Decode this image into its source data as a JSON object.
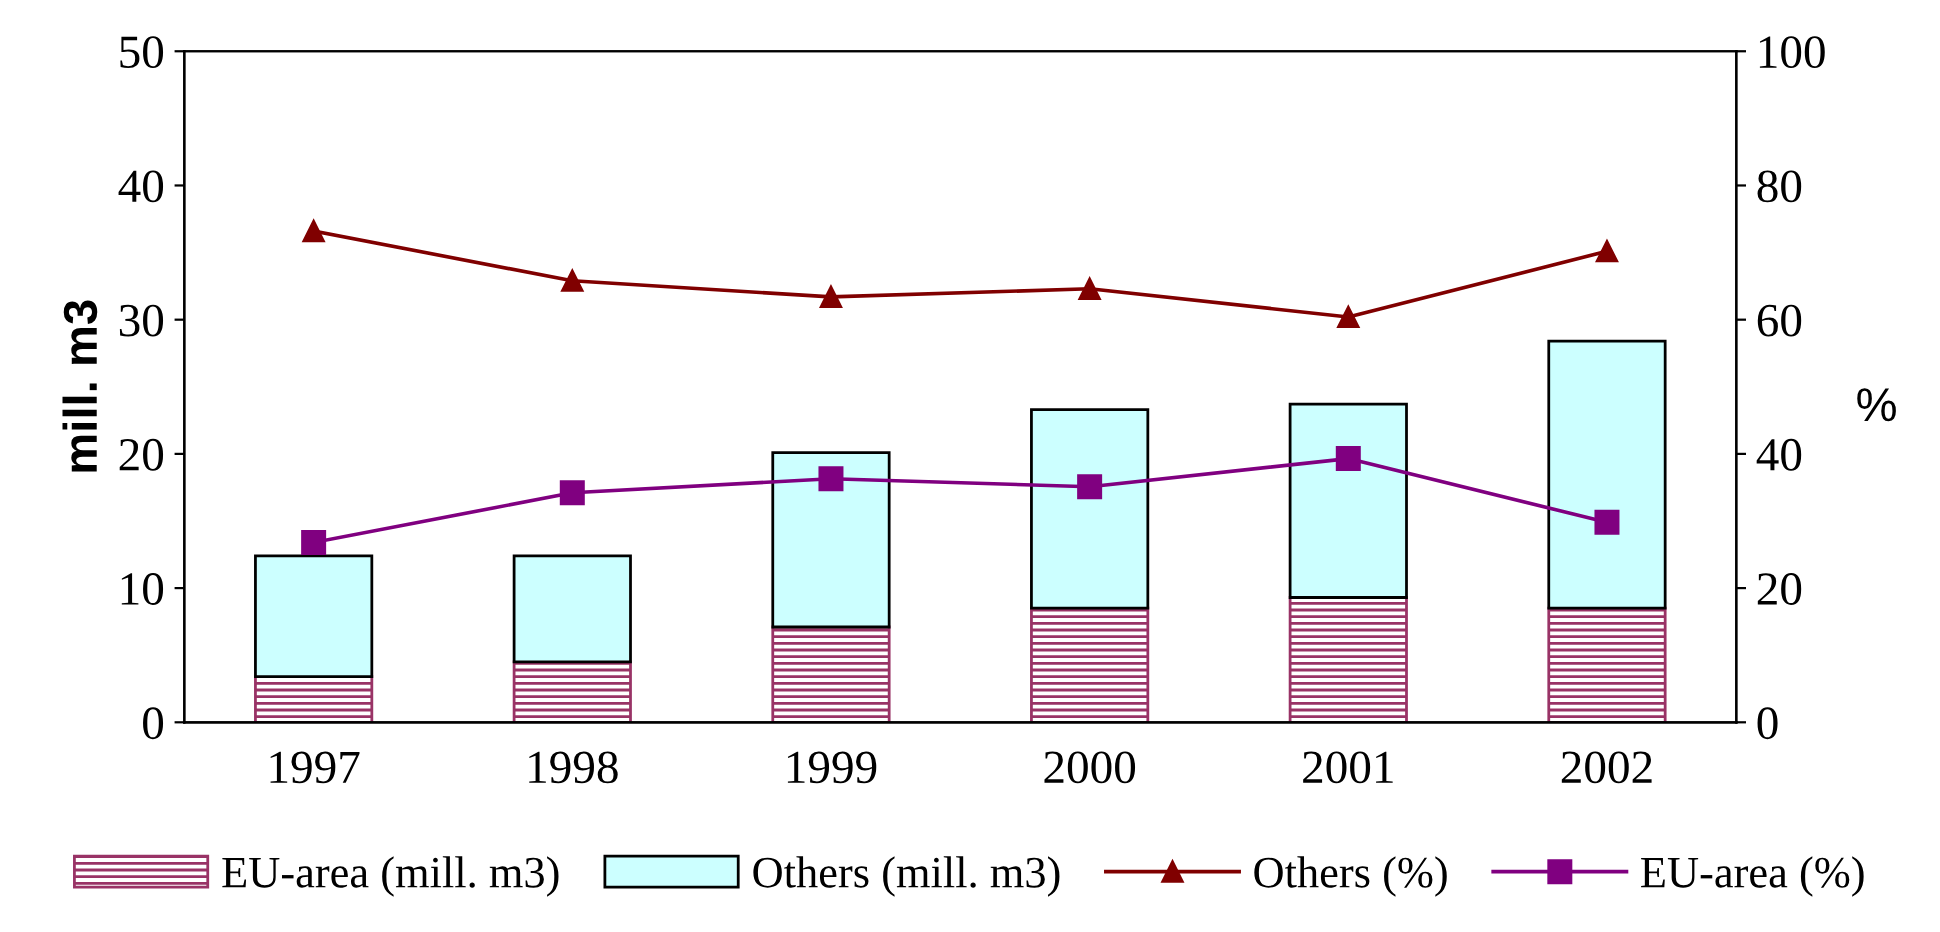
{
  "chart_data": {
    "type": "bar",
    "stacked": true,
    "categories": [
      "1997",
      "1998",
      "1999",
      "2000",
      "2001",
      "2002"
    ],
    "ylabel": "mill. m3",
    "y2label": "%",
    "ylim": [
      0,
      50
    ],
    "yticks": [
      0,
      10,
      20,
      30,
      40,
      50
    ],
    "y2lim": [
      0,
      100
    ],
    "y2ticks": [
      0,
      20,
      40,
      60,
      80,
      100
    ],
    "grid": false,
    "legend": "bottom",
    "series": [
      {
        "name": "EU-area (mill. m3)",
        "color": "#993366",
        "values": [
          3.4,
          4.5,
          7.1,
          8.5,
          9.3,
          8.5
        ]
      },
      {
        "name": "Others (mill. m3)",
        "color": "#ccffff",
        "values": [
          9.0,
          7.9,
          13.0,
          14.8,
          14.4,
          19.9
        ]
      },
      {
        "name": "Others (%)",
        "type": "line",
        "axis": "y2",
        "marker": "triangle",
        "color": "#800000",
        "values": [
          73.2,
          65.8,
          63.4,
          64.6,
          60.4,
          70.2
        ]
      },
      {
        "name": "EU-area (%)",
        "type": "line",
        "axis": "y2",
        "marker": "square",
        "color": "#800080",
        "values": [
          26.8,
          34.2,
          36.3,
          35.1,
          39.3,
          29.8
        ]
      }
    ]
  }
}
